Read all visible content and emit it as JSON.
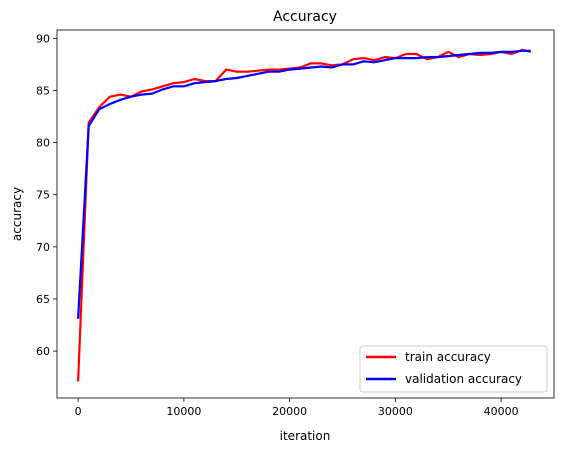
{
  "chart_data": {
    "type": "line",
    "title": "Accuracy",
    "xlabel": "iteration",
    "ylabel": "accuracy",
    "xlim": [
      -2000,
      45000
    ],
    "ylim": [
      55.5,
      90.8
    ],
    "xticks": [
      0,
      10000,
      20000,
      30000,
      40000
    ],
    "yticks": [
      60,
      65,
      70,
      75,
      80,
      85,
      90
    ],
    "xtick_labels": [
      "0",
      "10000",
      "20000",
      "30000",
      "40000"
    ],
    "ytick_labels": [
      "60",
      "65",
      "70",
      "75",
      "80",
      "85",
      "90"
    ],
    "grid": false,
    "legend_position": "lower-right",
    "series": [
      {
        "name": "train accuracy",
        "color": "#ff0000",
        "x": [
          0,
          1000,
          2000,
          3000,
          4000,
          5000,
          6000,
          7000,
          8000,
          9000,
          10000,
          11000,
          12000,
          13000,
          14000,
          15000,
          16000,
          17000,
          18000,
          19000,
          20000,
          21000,
          22000,
          23000,
          24000,
          25000,
          26000,
          27000,
          28000,
          29000,
          30000,
          31000,
          32000,
          33000,
          34000,
          35000,
          36000,
          37000,
          38000,
          39000,
          40000,
          41000,
          42000,
          42800
        ],
        "y": [
          57.1,
          81.9,
          83.4,
          84.4,
          84.6,
          84.4,
          84.9,
          85.1,
          85.4,
          85.7,
          85.8,
          86.1,
          85.9,
          85.9,
          87.0,
          86.8,
          86.8,
          86.9,
          87.0,
          87.0,
          87.1,
          87.2,
          87.6,
          87.6,
          87.4,
          87.5,
          88.0,
          88.1,
          87.9,
          88.2,
          88.1,
          88.5,
          88.5,
          88.0,
          88.2,
          88.7,
          88.2,
          88.5,
          88.4,
          88.5,
          88.7,
          88.5,
          88.9,
          88.7
        ]
      },
      {
        "name": "validation accuracy",
        "color": "#0000ff",
        "x": [
          0,
          1000,
          2000,
          3000,
          4000,
          5000,
          6000,
          7000,
          8000,
          9000,
          10000,
          11000,
          12000,
          13000,
          14000,
          15000,
          16000,
          17000,
          18000,
          19000,
          20000,
          21000,
          22000,
          23000,
          24000,
          25000,
          26000,
          27000,
          28000,
          29000,
          30000,
          31000,
          32000,
          33000,
          34000,
          35000,
          36000,
          37000,
          38000,
          39000,
          40000,
          41000,
          42000,
          42800
        ],
        "y": [
          63.1,
          81.6,
          83.2,
          83.7,
          84.1,
          84.4,
          84.6,
          84.7,
          85.1,
          85.4,
          85.4,
          85.7,
          85.8,
          85.9,
          86.1,
          86.2,
          86.4,
          86.6,
          86.8,
          86.8,
          87.0,
          87.1,
          87.2,
          87.3,
          87.2,
          87.5,
          87.5,
          87.8,
          87.7,
          87.9,
          88.1,
          88.1,
          88.1,
          88.2,
          88.2,
          88.3,
          88.4,
          88.5,
          88.6,
          88.6,
          88.7,
          88.7,
          88.8,
          88.8
        ]
      }
    ]
  }
}
